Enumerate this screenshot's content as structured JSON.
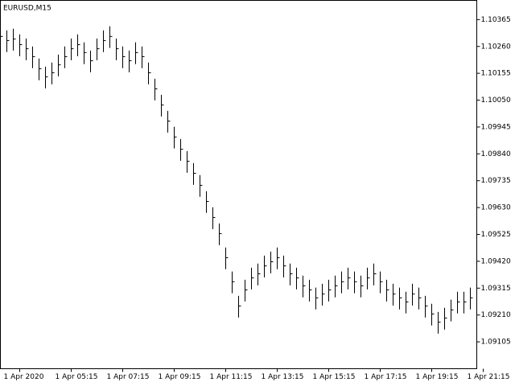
{
  "chart_data": {
    "type": "ohlc",
    "title": "EURUSD,M15",
    "color": "#000000",
    "x": [
      0,
      1,
      2,
      3,
      4,
      5,
      6,
      7,
      8,
      9,
      10,
      11,
      12,
      13,
      14,
      15,
      16,
      17,
      18,
      19,
      20,
      21,
      22,
      23,
      24,
      25,
      26,
      27,
      28,
      29,
      30,
      31,
      32,
      33,
      34,
      35,
      36,
      37,
      38,
      39,
      40,
      41,
      42,
      43,
      44,
      45,
      46,
      47,
      48,
      49,
      50,
      51,
      52,
      53,
      54,
      55,
      56,
      57,
      58,
      59,
      60,
      61,
      62,
      63,
      64,
      65,
      66,
      67,
      68,
      69,
      70,
      71,
      72,
      73
    ],
    "high": [
      1.10339,
      1.10323,
      1.10329,
      1.10307,
      1.10291,
      1.1026,
      1.10213,
      1.10181,
      1.10197,
      1.10228,
      1.1026,
      1.10291,
      1.10307,
      1.10276,
      1.10244,
      1.10291,
      1.10323,
      1.10339,
      1.10291,
      1.1026,
      1.10244,
      1.10276,
      1.1026,
      1.10197,
      1.10134,
      1.10071,
      1.10008,
      1.09946,
      1.09898,
      1.09851,
      1.09804,
      1.09757,
      1.09694,
      1.09631,
      1.09568,
      1.09474,
      1.0938,
      1.09285,
      1.09348,
      1.09395,
      1.09411,
      1.09442,
      1.09458,
      1.09474,
      1.09442,
      1.09411,
      1.09395,
      1.09364,
      1.09348,
      1.09317,
      1.09332,
      1.09348,
      1.09364,
      1.0938,
      1.09395,
      1.0938,
      1.09364,
      1.09395,
      1.09411,
      1.0938,
      1.09348,
      1.09332,
      1.09317,
      1.09301,
      1.09332,
      1.09317,
      1.09285,
      1.09254,
      1.09222,
      1.09238,
      1.0927,
      1.09301,
      1.09301,
      1.09317
    ],
    "low": [
      1.10254,
      1.10238,
      1.10244,
      1.10222,
      1.10206,
      1.10175,
      1.10128,
      1.10096,
      1.10112,
      1.10143,
      1.10175,
      1.10206,
      1.10222,
      1.10191,
      1.10159,
      1.10206,
      1.10238,
      1.10254,
      1.10206,
      1.10175,
      1.10159,
      1.10191,
      1.10175,
      1.10112,
      1.10049,
      1.09986,
      1.09923,
      1.09861,
      1.09813,
      1.09766,
      1.09719,
      1.09672,
      1.09609,
      1.09546,
      1.09483,
      1.09389,
      1.09295,
      1.092,
      1.09263,
      1.0931,
      1.09326,
      1.09357,
      1.09373,
      1.09389,
      1.09357,
      1.09326,
      1.0931,
      1.09279,
      1.09263,
      1.09232,
      1.09247,
      1.09263,
      1.09279,
      1.09295,
      1.0931,
      1.09295,
      1.09279,
      1.0931,
      1.09326,
      1.09295,
      1.09263,
      1.09247,
      1.09232,
      1.09216,
      1.09247,
      1.09232,
      1.092,
      1.09169,
      1.09137,
      1.09153,
      1.09185,
      1.09216,
      1.09216,
      1.09232
    ],
    "close": [
      1.10299,
      1.10283,
      1.10289,
      1.10267,
      1.10251,
      1.1022,
      1.10173,
      1.10141,
      1.10157,
      1.10188,
      1.1022,
      1.10251,
      1.10267,
      1.10236,
      1.10204,
      1.10251,
      1.10283,
      1.10299,
      1.10251,
      1.1022,
      1.10204,
      1.10236,
      1.1022,
      1.10157,
      1.10094,
      1.10031,
      1.09968,
      1.09906,
      1.09858,
      1.09811,
      1.09764,
      1.09717,
      1.09654,
      1.09591,
      1.09528,
      1.09434,
      1.0934,
      1.09245,
      1.09308,
      1.09355,
      1.09371,
      1.09402,
      1.09418,
      1.09434,
      1.09402,
      1.09371,
      1.09355,
      1.09324,
      1.09308,
      1.09277,
      1.09292,
      1.09308,
      1.09324,
      1.0934,
      1.09355,
      1.0934,
      1.09324,
      1.09355,
      1.09371,
      1.0934,
      1.09308,
      1.09292,
      1.09277,
      1.09261,
      1.09292,
      1.09277,
      1.09245,
      1.09214,
      1.09182,
      1.09198,
      1.0923,
      1.09261,
      1.09261,
      1.09277
    ],
    "xlim": [
      0,
      74
    ],
    "xticks": [
      {
        "value": 3,
        "label": "1 Apr 2020"
      },
      {
        "value": 11,
        "label": "1 Apr 05:15"
      },
      {
        "value": 19,
        "label": "1 Apr 07:15"
      },
      {
        "value": 27,
        "label": "1 Apr 09:15"
      },
      {
        "value": 35,
        "label": "1 Apr 11:15"
      },
      {
        "value": 43,
        "label": "1 Apr 13:15"
      },
      {
        "value": 51,
        "label": "1 Apr 15:15"
      },
      {
        "value": 59,
        "label": "1 Apr 17:15"
      },
      {
        "value": 67,
        "label": "1 Apr 19:15"
      },
      {
        "value": 75,
        "label": "1 Apr 21:15"
      }
    ],
    "ylim": [
      1.09,
      1.1044
    ],
    "yticks": [
      {
        "value": 1.10365,
        "label": "1.10365"
      },
      {
        "value": 1.1026,
        "label": "1.10260"
      },
      {
        "value": 1.10155,
        "label": "1.10155"
      },
      {
        "value": 1.1005,
        "label": "1.10050"
      },
      {
        "value": 1.09945,
        "label": "1.09945"
      },
      {
        "value": 1.0984,
        "label": "1.09840"
      },
      {
        "value": 1.09735,
        "label": "1.09735"
      },
      {
        "value": 1.0963,
        "label": "1.09630"
      },
      {
        "value": 1.09525,
        "label": "1.09525"
      },
      {
        "value": 1.0942,
        "label": "1.09420"
      },
      {
        "value": 1.09315,
        "label": "1.09315"
      },
      {
        "value": 1.0921,
        "label": "1.09210"
      },
      {
        "value": 1.09105,
        "label": "1.09105"
      }
    ]
  }
}
